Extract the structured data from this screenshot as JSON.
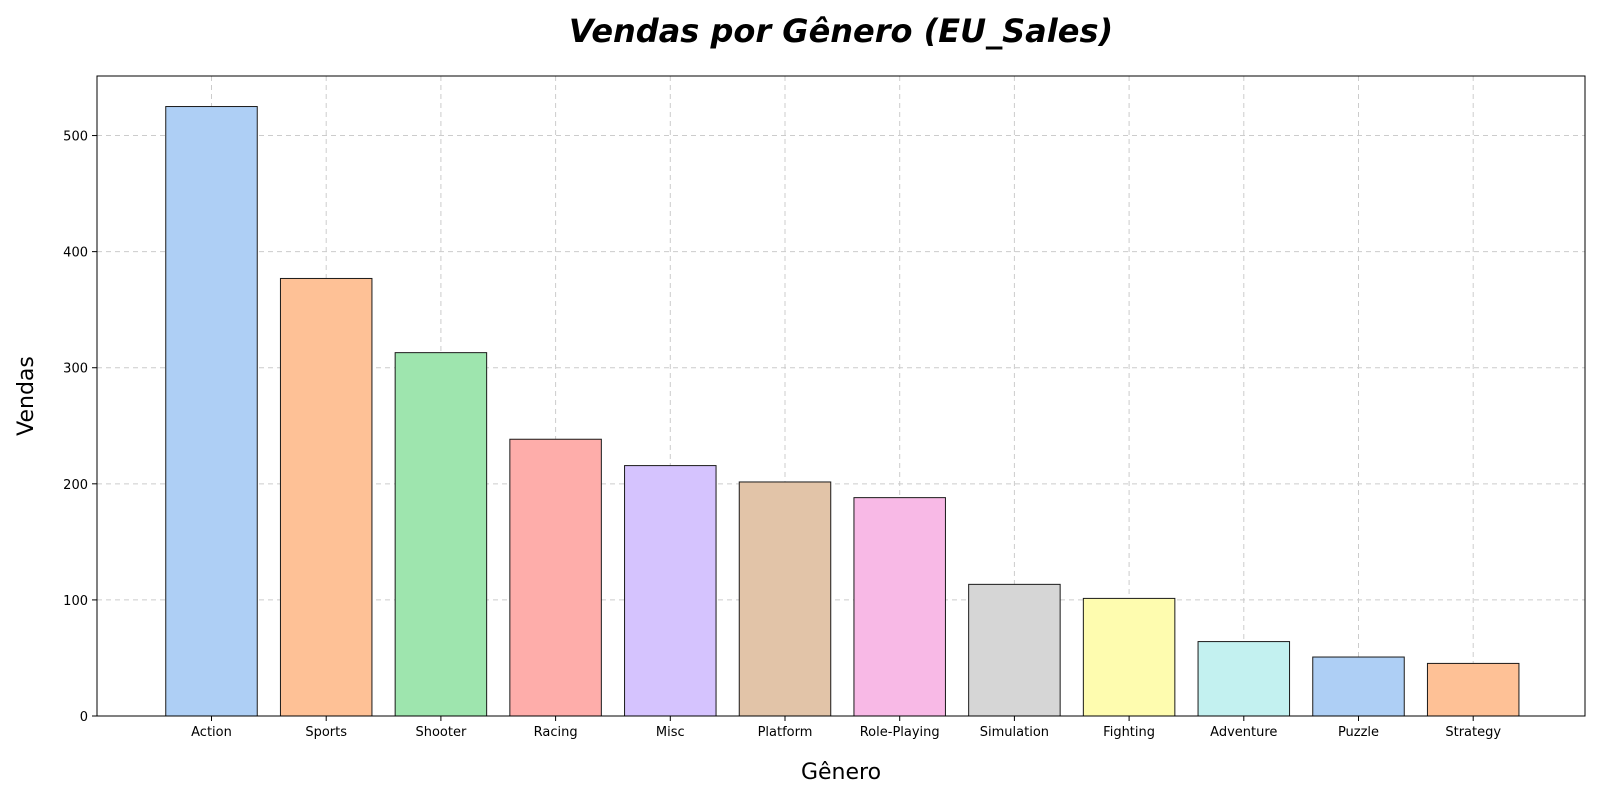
{
  "chart_data": {
    "type": "bar",
    "title": "Vendas por Gênero (EU_Sales)",
    "xlabel": "Gênero",
    "ylabel": "Vendas",
    "categories": [
      "Action",
      "Sports",
      "Shooter",
      "Racing",
      "Misc",
      "Platform",
      "Role-Playing",
      "Simulation",
      "Fighting",
      "Adventure",
      "Puzzle",
      "Strategy"
    ],
    "values": [
      525,
      376.9,
      313,
      238.4,
      215.7,
      201.6,
      188.1,
      113.4,
      101.3,
      64.1,
      50.8,
      45.3
    ],
    "colors": [
      "#aecff5",
      "#fec196",
      "#9ee5ae",
      "#feadaa",
      "#d5c3fe",
      "#e2c4a8",
      "#f8b9e6",
      "#d6d6d6",
      "#fefcaf",
      "#c3f1f0",
      "#aecff5",
      "#fec196"
    ],
    "yticks": [
      0,
      100,
      200,
      300,
      400,
      500
    ],
    "ylim": [
      0,
      551.3
    ],
    "grid": true
  }
}
